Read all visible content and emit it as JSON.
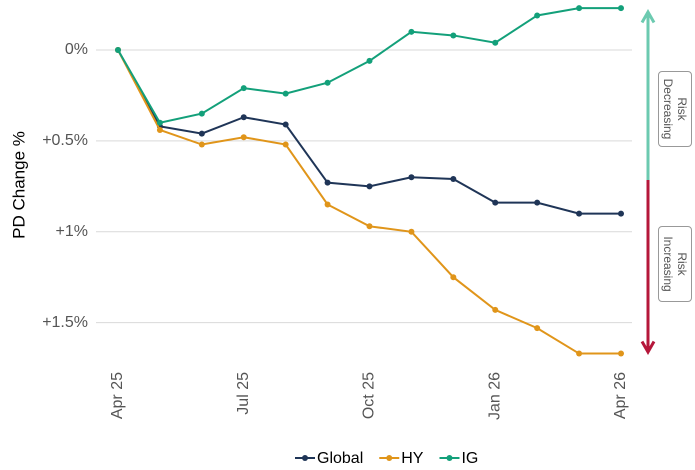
{
  "chart_data": {
    "type": "line",
    "y_label": "PD Change %",
    "categories": [
      "Apr 25",
      null,
      null,
      "Jul 25",
      null,
      null,
      "Oct 25",
      null,
      null,
      "Jan 26",
      null,
      null,
      "Apr 26"
    ],
    "series": [
      {
        "name": "Global",
        "color": "#1f3557",
        "values": [
          0,
          0.42,
          0.46,
          0.37,
          0.41,
          0.73,
          0.75,
          0.7,
          0.71,
          0.84,
          0.84,
          0.9,
          0.9
        ]
      },
      {
        "name": "HY",
        "color": "#e0951a",
        "values": [
          0,
          0.44,
          0.52,
          0.48,
          0.52,
          0.85,
          0.97,
          1.0,
          1.25,
          1.43,
          1.53,
          1.67,
          1.67
        ]
      },
      {
        "name": "IG",
        "color": "#13a07a",
        "values": [
          0,
          0.4,
          0.35,
          0.21,
          0.24,
          0.18,
          0.06,
          -0.1,
          -0.08,
          -0.04,
          -0.19,
          -0.23,
          -0.23
        ]
      }
    ],
    "ylim": [
      -0.22,
      1.7
    ],
    "y_inverted": true,
    "yticks": [
      {
        "value": 0,
        "label": "0%"
      },
      {
        "value": 0.5,
        "label": "+0.5%"
      },
      {
        "value": 1,
        "label": "+1%"
      },
      {
        "value": 1.5,
        "label": "+1.5%"
      }
    ],
    "grid": true,
    "legend": "bottom",
    "annotations": [
      {
        "text": "Risk Decreasing",
        "color": "#6ccab0"
      },
      {
        "text": "Risk Increasing",
        "color": "#b5173a"
      }
    ]
  }
}
